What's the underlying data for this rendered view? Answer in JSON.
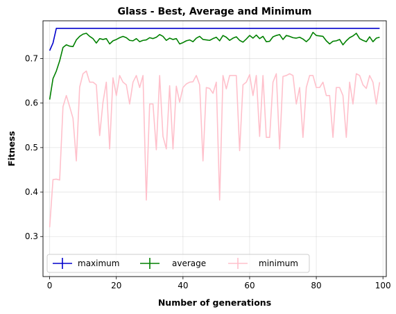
{
  "chart_data": {
    "type": "line",
    "title": "Glass - Best, Average and Minimum",
    "xlabel": "Number of generations",
    "ylabel": "Fitness",
    "xlim": [
      -2,
      101
    ],
    "ylim": [
      0.21,
      0.785
    ],
    "xticks": [
      0,
      20,
      40,
      60,
      80,
      100
    ],
    "yticks": [
      0.3,
      0.4,
      0.5,
      0.6,
      0.7
    ],
    "grid": true,
    "legend_position": "lower-center",
    "series": [
      {
        "name": "maximum",
        "color": "#0000cc",
        "x": [
          0,
          1,
          2,
          3,
          99
        ],
        "y": [
          0.718,
          0.735,
          0.768,
          0.768,
          0.768
        ]
      },
      {
        "name": "average",
        "color": "#008000",
        "x": [
          0,
          1,
          2,
          3,
          4,
          5,
          6,
          7,
          8,
          9,
          10,
          11,
          12,
          13,
          14,
          15,
          16,
          17,
          18,
          19,
          20,
          21,
          22,
          23,
          24,
          25,
          26,
          27,
          28,
          29,
          30,
          31,
          32,
          33,
          34,
          35,
          36,
          37,
          38,
          39,
          40,
          41,
          42,
          43,
          44,
          45,
          46,
          47,
          48,
          49,
          50,
          51,
          52,
          53,
          54,
          55,
          56,
          57,
          58,
          59,
          60,
          61,
          62,
          63,
          64,
          65,
          66,
          67,
          68,
          69,
          70,
          71,
          72,
          73,
          74,
          75,
          76,
          77,
          78,
          79,
          80,
          81,
          82,
          83,
          84,
          85,
          86,
          87,
          88,
          89,
          90,
          91,
          92,
          93,
          94,
          95,
          96,
          97,
          98,
          99
        ],
        "y": [
          0.608,
          0.655,
          0.672,
          0.695,
          0.725,
          0.731,
          0.728,
          0.727,
          0.742,
          0.75,
          0.755,
          0.757,
          0.75,
          0.745,
          0.735,
          0.745,
          0.743,
          0.745,
          0.733,
          0.74,
          0.743,
          0.747,
          0.75,
          0.747,
          0.741,
          0.74,
          0.745,
          0.738,
          0.741,
          0.742,
          0.747,
          0.745,
          0.748,
          0.754,
          0.75,
          0.741,
          0.746,
          0.743,
          0.745,
          0.733,
          0.736,
          0.74,
          0.742,
          0.738,
          0.746,
          0.75,
          0.743,
          0.742,
          0.741,
          0.745,
          0.748,
          0.74,
          0.752,
          0.748,
          0.741,
          0.746,
          0.749,
          0.741,
          0.737,
          0.744,
          0.752,
          0.746,
          0.753,
          0.745,
          0.75,
          0.738,
          0.739,
          0.749,
          0.752,
          0.754,
          0.743,
          0.752,
          0.75,
          0.747,
          0.746,
          0.748,
          0.744,
          0.738,
          0.745,
          0.759,
          0.752,
          0.751,
          0.75,
          0.74,
          0.733,
          0.739,
          0.74,
          0.743,
          0.731,
          0.74,
          0.747,
          0.751,
          0.757,
          0.745,
          0.741,
          0.738,
          0.749,
          0.738,
          0.746,
          0.748
        ]
      },
      {
        "name": "minimum",
        "color": "#ffc0cb",
        "x": [
          0,
          1,
          2,
          3,
          4,
          5,
          6,
          7,
          8,
          9,
          10,
          11,
          12,
          13,
          14,
          15,
          16,
          17,
          18,
          19,
          20,
          21,
          22,
          23,
          24,
          25,
          26,
          27,
          28,
          29,
          30,
          31,
          32,
          33,
          34,
          35,
          36,
          37,
          38,
          39,
          40,
          41,
          42,
          43,
          44,
          45,
          46,
          47,
          48,
          49,
          50,
          51,
          52,
          53,
          54,
          55,
          56,
          57,
          58,
          59,
          60,
          61,
          62,
          63,
          64,
          65,
          66,
          67,
          68,
          69,
          70,
          71,
          72,
          73,
          74,
          75,
          76,
          77,
          78,
          79,
          80,
          81,
          82,
          83,
          84,
          85,
          86,
          87,
          88,
          89,
          90,
          91,
          92,
          93,
          94,
          95,
          96,
          97,
          98,
          99
        ],
        "y": [
          0.321,
          0.428,
          0.429,
          0.427,
          0.592,
          0.617,
          0.592,
          0.566,
          0.47,
          0.636,
          0.666,
          0.672,
          0.647,
          0.647,
          0.641,
          0.527,
          0.602,
          0.647,
          0.497,
          0.657,
          0.617,
          0.662,
          0.647,
          0.641,
          0.598,
          0.647,
          0.662,
          0.635,
          0.662,
          0.382,
          0.598,
          0.598,
          0.495,
          0.662,
          0.525,
          0.497,
          0.639,
          0.497,
          0.638,
          0.602,
          0.635,
          0.643,
          0.647,
          0.648,
          0.662,
          0.641,
          0.47,
          0.635,
          0.633,
          0.622,
          0.647,
          0.382,
          0.662,
          0.632,
          0.662,
          0.662,
          0.662,
          0.493,
          0.641,
          0.647,
          0.664,
          0.617,
          0.662,
          0.525,
          0.662,
          0.523,
          0.523,
          0.647,
          0.666,
          0.497,
          0.66,
          0.662,
          0.666,
          0.662,
          0.598,
          0.635,
          0.523,
          0.635,
          0.662,
          0.662,
          0.635,
          0.635,
          0.647,
          0.617,
          0.617,
          0.523,
          0.635,
          0.635,
          0.617,
          0.523,
          0.647,
          0.598,
          0.666,
          0.662,
          0.641,
          0.633,
          0.662,
          0.647,
          0.598,
          0.647
        ]
      }
    ]
  }
}
